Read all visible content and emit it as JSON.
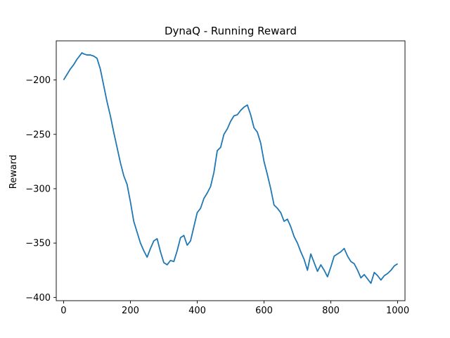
{
  "chart_data": {
    "type": "line",
    "title": "DynaQ - Running Reward",
    "xlabel": "",
    "ylabel": "Reward",
    "xlim": [
      -22,
      1022
    ],
    "ylim": [
      -403,
      -164
    ],
    "x_ticks": [
      0,
      200,
      400,
      600,
      800,
      1000
    ],
    "y_ticks": [
      -400,
      -350,
      -300,
      -250,
      -200
    ],
    "grid": false,
    "series": [
      {
        "color": "#1f77b4",
        "points": [
          [
            0,
            -200
          ],
          [
            10,
            -195
          ],
          [
            20,
            -190
          ],
          [
            30,
            -186
          ],
          [
            40,
            -181
          ],
          [
            50,
            -177
          ],
          [
            55,
            -175
          ],
          [
            60,
            -176
          ],
          [
            70,
            -177
          ],
          [
            80,
            -177
          ],
          [
            90,
            -178
          ],
          [
            100,
            -180
          ],
          [
            110,
            -190
          ],
          [
            120,
            -205
          ],
          [
            130,
            -220
          ],
          [
            140,
            -233
          ],
          [
            150,
            -248
          ],
          [
            160,
            -262
          ],
          [
            170,
            -276
          ],
          [
            180,
            -288
          ],
          [
            190,
            -296
          ],
          [
            200,
            -312
          ],
          [
            210,
            -330
          ],
          [
            220,
            -340
          ],
          [
            230,
            -350
          ],
          [
            240,
            -357
          ],
          [
            250,
            -363
          ],
          [
            260,
            -355
          ],
          [
            270,
            -348
          ],
          [
            280,
            -346
          ],
          [
            290,
            -358
          ],
          [
            300,
            -368
          ],
          [
            310,
            -370
          ],
          [
            320,
            -366
          ],
          [
            330,
            -367
          ],
          [
            340,
            -357
          ],
          [
            350,
            -345
          ],
          [
            360,
            -343
          ],
          [
            370,
            -352
          ],
          [
            380,
            -348
          ],
          [
            390,
            -335
          ],
          [
            400,
            -322
          ],
          [
            410,
            -318
          ],
          [
            420,
            -309
          ],
          [
            430,
            -304
          ],
          [
            440,
            -298
          ],
          [
            450,
            -285
          ],
          [
            460,
            -265
          ],
          [
            470,
            -262
          ],
          [
            480,
            -250
          ],
          [
            490,
            -245
          ],
          [
            500,
            -238
          ],
          [
            510,
            -233
          ],
          [
            520,
            -232
          ],
          [
            530,
            -228
          ],
          [
            540,
            -225
          ],
          [
            550,
            -223
          ],
          [
            560,
            -232
          ],
          [
            570,
            -244
          ],
          [
            580,
            -248
          ],
          [
            590,
            -258
          ],
          [
            600,
            -275
          ],
          [
            610,
            -287
          ],
          [
            620,
            -300
          ],
          [
            630,
            -315
          ],
          [
            640,
            -318
          ],
          [
            650,
            -322
          ],
          [
            660,
            -330
          ],
          [
            670,
            -328
          ],
          [
            680,
            -335
          ],
          [
            690,
            -344
          ],
          [
            700,
            -350
          ],
          [
            710,
            -358
          ],
          [
            720,
            -365
          ],
          [
            730,
            -375
          ],
          [
            740,
            -360
          ],
          [
            750,
            -368
          ],
          [
            760,
            -376
          ],
          [
            770,
            -370
          ],
          [
            780,
            -375
          ],
          [
            790,
            -381
          ],
          [
            800,
            -372
          ],
          [
            810,
            -362
          ],
          [
            820,
            -360
          ],
          [
            830,
            -358
          ],
          [
            840,
            -355
          ],
          [
            850,
            -362
          ],
          [
            860,
            -367
          ],
          [
            870,
            -369
          ],
          [
            880,
            -375
          ],
          [
            890,
            -382
          ],
          [
            900,
            -379
          ],
          [
            910,
            -383
          ],
          [
            920,
            -387
          ],
          [
            930,
            -377
          ],
          [
            940,
            -380
          ],
          [
            950,
            -384
          ],
          [
            960,
            -380
          ],
          [
            970,
            -378
          ],
          [
            980,
            -375
          ],
          [
            990,
            -371
          ],
          [
            1000,
            -369
          ]
        ]
      }
    ]
  }
}
